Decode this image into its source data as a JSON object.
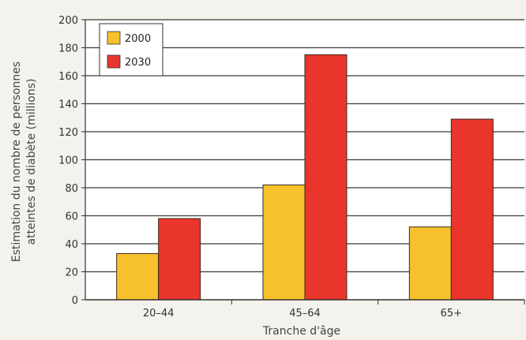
{
  "chart_data": {
    "type": "bar",
    "categories": [
      "20–44",
      "45–64",
      "65+"
    ],
    "series": [
      {
        "name": "2000",
        "values": [
          33,
          82,
          52
        ]
      },
      {
        "name": "2030",
        "values": [
          58,
          175,
          129
        ]
      }
    ],
    "xlabel": "Tranche d'âge",
    "ylabel_lines": [
      "Estimation du nombre de personnes",
      "atteintes de diabète (millions)"
    ],
    "ylim": [
      0,
      200
    ],
    "yticks": [
      0,
      20,
      40,
      60,
      80,
      100,
      120,
      140,
      160,
      180,
      200
    ],
    "grid": true,
    "legend_position": "top-left"
  },
  "colors": {
    "series_2000": "#f6c12c",
    "series_2030": "#e9352c",
    "plot_background": "#ffffff",
    "gridline": "#3a3a3a"
  }
}
